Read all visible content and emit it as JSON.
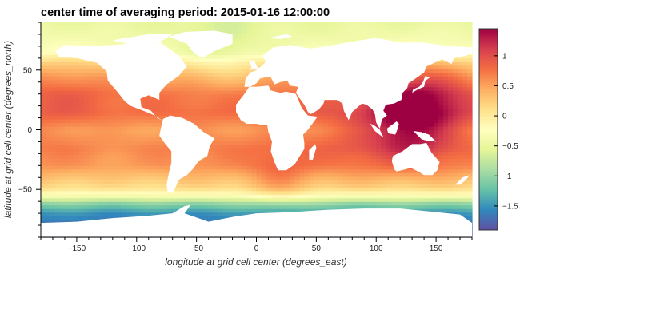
{
  "chart_data": {
    "type": "heatmap",
    "title": "center time of averaging period: 2015-01-16 12:00:00",
    "xlabel": "longitude at grid cell center (degrees_east)",
    "ylabel": "latitude at grid cell center (degrees_north)",
    "xlim": [
      -180,
      180
    ],
    "ylim": [
      -90,
      90
    ],
    "x_ticks": [
      -150,
      -100,
      -50,
      0,
      50,
      100,
      150
    ],
    "y_ticks": [
      -50,
      0,
      50
    ],
    "colorbar": {
      "colormap": "Spectral_r",
      "clim": [
        -1.9,
        1.45
      ],
      "ticks": [
        1,
        0.5,
        0,
        -0.5,
        -1,
        -1.5
      ],
      "tick_labels": [
        "1",
        "0.5",
        "0",
        "−0.5",
        "−1",
        "−1.5"
      ]
    },
    "land_color": "#ffffff",
    "zonal_profile": [
      {
        "lat": -90,
        "value": -1.9
      },
      {
        "lat": -80,
        "value": -1.7
      },
      {
        "lat": -70,
        "value": -1.5
      },
      {
        "lat": -62,
        "value": -1.05
      },
      {
        "lat": -55,
        "value": -0.3
      },
      {
        "lat": -48,
        "value": 0.15
      },
      {
        "lat": -40,
        "value": 0.35
      },
      {
        "lat": -30,
        "value": 0.6
      },
      {
        "lat": -15,
        "value": 0.7
      },
      {
        "lat": 0,
        "value": 0.55
      },
      {
        "lat": 15,
        "value": 0.8
      },
      {
        "lat": 30,
        "value": 0.75
      },
      {
        "lat": 45,
        "value": 0.45
      },
      {
        "lat": 55,
        "value": 0.15
      },
      {
        "lat": 65,
        "value": -0.3
      },
      {
        "lat": 75,
        "value": -0.4
      },
      {
        "lat": 90,
        "value": -0.5
      }
    ],
    "anomalies": [
      {
        "lon": 140,
        "lat": 20,
        "radius": 28,
        "value": 0.6
      },
      {
        "lon": 125,
        "lat": 5,
        "radius": 20,
        "value": 0.5
      },
      {
        "lon": 80,
        "lat": -5,
        "radius": 25,
        "value": 0.2
      },
      {
        "lon": -160,
        "lat": 35,
        "radius": 30,
        "value": 0.15
      },
      {
        "lon": -30,
        "lat": 65,
        "radius": 22,
        "value": -0.25
      },
      {
        "lon": -120,
        "lat": -15,
        "radius": 30,
        "value": -0.1
      },
      {
        "lon": 20,
        "lat": -40,
        "radius": 18,
        "value": 0.3
      }
    ],
    "land_polygons": [
      {
        "name": "north-america",
        "points": [
          [
            -168,
            66
          ],
          [
            -160,
            71
          ],
          [
            -140,
            70
          ],
          [
            -120,
            71
          ],
          [
            -95,
            73
          ],
          [
            -80,
            73
          ],
          [
            -65,
            62
          ],
          [
            -58,
            53
          ],
          [
            -65,
            45
          ],
          [
            -75,
            38
          ],
          [
            -81,
            31
          ],
          [
            -81,
            25
          ],
          [
            -90,
            29
          ],
          [
            -97,
            26
          ],
          [
            -96,
            19
          ],
          [
            -88,
            16
          ],
          [
            -83,
            10
          ],
          [
            -79,
            8
          ],
          [
            -85,
            12
          ],
          [
            -92,
            15
          ],
          [
            -105,
            20
          ],
          [
            -110,
            24
          ],
          [
            -117,
            33
          ],
          [
            -124,
            41
          ],
          [
            -125,
            49
          ],
          [
            -133,
            56
          ],
          [
            -150,
            60
          ],
          [
            -165,
            61
          ]
        ]
      },
      {
        "name": "greenland",
        "points": [
          [
            -73,
            78
          ],
          [
            -60,
            82
          ],
          [
            -35,
            83
          ],
          [
            -20,
            80
          ],
          [
            -20,
            72
          ],
          [
            -35,
            66
          ],
          [
            -45,
            60
          ],
          [
            -52,
            64
          ],
          [
            -58,
            72
          ]
        ]
      },
      {
        "name": "south-america",
        "points": [
          [
            -78,
            9
          ],
          [
            -72,
            12
          ],
          [
            -62,
            10
          ],
          [
            -52,
            5
          ],
          [
            -44,
            -2
          ],
          [
            -35,
            -7
          ],
          [
            -39,
            -14
          ],
          [
            -41,
            -22
          ],
          [
            -48,
            -26
          ],
          [
            -53,
            -33
          ],
          [
            -58,
            -38
          ],
          [
            -65,
            -42
          ],
          [
            -67,
            -47
          ],
          [
            -70,
            -53
          ],
          [
            -74,
            -52
          ],
          [
            -75,
            -46
          ],
          [
            -73,
            -36
          ],
          [
            -71,
            -28
          ],
          [
            -71,
            -18
          ],
          [
            -76,
            -12
          ],
          [
            -81,
            -5
          ],
          [
            -80,
            0
          ]
        ]
      },
      {
        "name": "europe-asia",
        "points": [
          [
            -10,
            36
          ],
          [
            -9,
            43
          ],
          [
            -5,
            48
          ],
          [
            0,
            50
          ],
          [
            5,
            54
          ],
          [
            8,
            57
          ],
          [
            5,
            62
          ],
          [
            14,
            69
          ],
          [
            28,
            71
          ],
          [
            45,
            68
          ],
          [
            60,
            70
          ],
          [
            75,
            73
          ],
          [
            100,
            77
          ],
          [
            120,
            73
          ],
          [
            140,
            73
          ],
          [
            160,
            70
          ],
          [
            180,
            69
          ],
          [
            180,
            64
          ],
          [
            175,
            62
          ],
          [
            165,
            60
          ],
          [
            163,
            55
          ],
          [
            155,
            59
          ],
          [
            142,
            53
          ],
          [
            140,
            48
          ],
          [
            133,
            43
          ],
          [
            127,
            39
          ],
          [
            126,
            35
          ],
          [
            122,
            31
          ],
          [
            121,
            25
          ],
          [
            115,
            22
          ],
          [
            108,
            21
          ],
          [
            106,
            16
          ],
          [
            109,
            12
          ],
          [
            105,
            9
          ],
          [
            103,
            1
          ],
          [
            100,
            6
          ],
          [
            99,
            13
          ],
          [
            97,
            17
          ],
          [
            92,
            21
          ],
          [
            88,
            22
          ],
          [
            80,
            15
          ],
          [
            77,
            8
          ],
          [
            73,
            16
          ],
          [
            72,
            22
          ],
          [
            67,
            25
          ],
          [
            57,
            25
          ],
          [
            56,
            22
          ],
          [
            52,
            17
          ],
          [
            45,
            13
          ],
          [
            43,
            15
          ],
          [
            40,
            21
          ],
          [
            35,
            28
          ],
          [
            33,
            31
          ],
          [
            35,
            36
          ],
          [
            28,
            37
          ],
          [
            26,
            41
          ],
          [
            20,
            40
          ],
          [
            15,
            38
          ],
          [
            12,
            44
          ],
          [
            8,
            44
          ],
          [
            3,
            43
          ],
          [
            0,
            39
          ],
          [
            -5,
            36
          ]
        ]
      },
      {
        "name": "africa",
        "points": [
          [
            -17,
            21
          ],
          [
            -17,
            15
          ],
          [
            -13,
            8
          ],
          [
            -8,
            5
          ],
          [
            0,
            5
          ],
          [
            5,
            4
          ],
          [
            9,
            4
          ],
          [
            10,
            -2
          ],
          [
            13,
            -10
          ],
          [
            12,
            -18
          ],
          [
            15,
            -27
          ],
          [
            18,
            -34
          ],
          [
            25,
            -34
          ],
          [
            32,
            -29
          ],
          [
            35,
            -24
          ],
          [
            40,
            -16
          ],
          [
            40,
            -11
          ],
          [
            39,
            -4
          ],
          [
            43,
            0
          ],
          [
            51,
            11
          ],
          [
            43,
            12
          ],
          [
            38,
            18
          ],
          [
            33,
            30
          ],
          [
            25,
            32
          ],
          [
            20,
            31
          ],
          [
            12,
            33
          ],
          [
            10,
            37
          ],
          [
            0,
            36
          ],
          [
            -6,
            36
          ],
          [
            -10,
            30
          ]
        ]
      },
      {
        "name": "arabia-patch",
        "points": [
          [
            35,
            28
          ],
          [
            40,
            21
          ],
          [
            43,
            15
          ],
          [
            45,
            13
          ],
          [
            52,
            17
          ],
          [
            56,
            22
          ],
          [
            57,
            25
          ],
          [
            50,
            29
          ],
          [
            48,
            30
          ],
          [
            40,
            33
          ]
        ]
      },
      {
        "name": "australia",
        "points": [
          [
            114,
            -22
          ],
          [
            122,
            -18
          ],
          [
            130,
            -12
          ],
          [
            137,
            -12
          ],
          [
            142,
            -11
          ],
          [
            146,
            -19
          ],
          [
            153,
            -27
          ],
          [
            151,
            -34
          ],
          [
            147,
            -38
          ],
          [
            140,
            -38
          ],
          [
            135,
            -35
          ],
          [
            129,
            -32
          ],
          [
            117,
            -35
          ],
          [
            115,
            -33
          ],
          [
            113,
            -26
          ]
        ]
      },
      {
        "name": "borneo",
        "points": [
          [
            109,
            1
          ],
          [
            113,
            4
          ],
          [
            117,
            7
          ],
          [
            119,
            5
          ],
          [
            118,
            1
          ],
          [
            116,
            -4
          ],
          [
            110,
            -3
          ]
        ]
      },
      {
        "name": "sumatra",
        "points": [
          [
            95,
            5
          ],
          [
            98,
            4
          ],
          [
            103,
            0
          ],
          [
            106,
            -6
          ],
          [
            104,
            -5
          ],
          [
            99,
            -1
          ]
        ]
      },
      {
        "name": "new-guinea",
        "points": [
          [
            131,
            -1
          ],
          [
            138,
            -2
          ],
          [
            144,
            -4
          ],
          [
            150,
            -10
          ],
          [
            142,
            -9
          ],
          [
            138,
            -8
          ],
          [
            134,
            -4
          ]
        ]
      },
      {
        "name": "japan",
        "points": [
          [
            130,
            31
          ],
          [
            135,
            34
          ],
          [
            140,
            36
          ],
          [
            141,
            41
          ],
          [
            145,
            44
          ],
          [
            141,
            45
          ],
          [
            139,
            40
          ],
          [
            136,
            36
          ],
          [
            131,
            34
          ]
        ]
      },
      {
        "name": "madagascar",
        "points": [
          [
            44,
            -25
          ],
          [
            47,
            -25
          ],
          [
            50,
            -15
          ],
          [
            49,
            -12
          ],
          [
            44,
            -17
          ]
        ]
      },
      {
        "name": "uk",
        "points": [
          [
            -6,
            50
          ],
          [
            2,
            51
          ],
          [
            0,
            54
          ],
          [
            -2,
            58
          ],
          [
            -6,
            58
          ],
          [
            -5,
            55
          ],
          [
            -4,
            52
          ]
        ]
      },
      {
        "name": "new-zealand",
        "points": [
          [
            166,
            -46
          ],
          [
            172,
            -40
          ],
          [
            178,
            -38
          ],
          [
            175,
            -42
          ],
          [
            170,
            -46
          ]
        ]
      },
      {
        "name": "antarctica",
        "points": [
          [
            -180,
            -78
          ],
          [
            -150,
            -77
          ],
          [
            -120,
            -74
          ],
          [
            -90,
            -72
          ],
          [
            -70,
            -70
          ],
          [
            -60,
            -64
          ],
          [
            -55,
            -63
          ],
          [
            -60,
            -70
          ],
          [
            -40,
            -77
          ],
          [
            -20,
            -73
          ],
          [
            0,
            -70
          ],
          [
            30,
            -69
          ],
          [
            60,
            -67
          ],
          [
            90,
            -66
          ],
          [
            120,
            -66
          ],
          [
            150,
            -69
          ],
          [
            170,
            -71
          ],
          [
            180,
            -78
          ],
          [
            180,
            -90
          ],
          [
            -180,
            -90
          ]
        ]
      },
      {
        "name": "svalbard-arctic",
        "points": [
          [
            10,
            77
          ],
          [
            25,
            80
          ],
          [
            30,
            78
          ],
          [
            20,
            76
          ]
        ]
      },
      {
        "name": "arctic-islands",
        "points": [
          [
            -120,
            75
          ],
          [
            -90,
            80
          ],
          [
            -70,
            80
          ],
          [
            -80,
            74
          ],
          [
            -100,
            70
          ]
        ]
      }
    ]
  }
}
